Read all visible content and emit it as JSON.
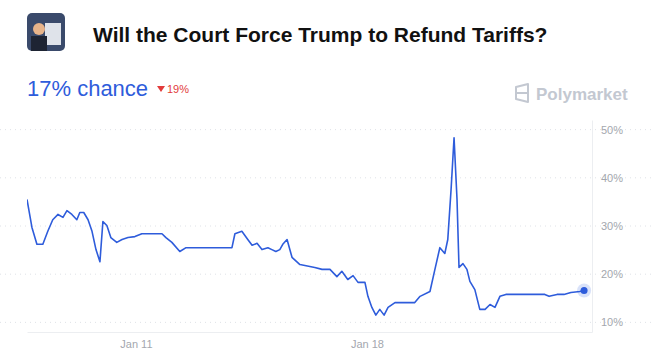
{
  "chart_data": {
    "type": "line",
    "title": "Will the Court Force Trump to Refund Tariffs?",
    "subtitle": "17% chance",
    "annotations": [
      "19%",
      "Polymarket"
    ],
    "color": "#2e5cdb",
    "grid": true,
    "x": [
      7.7,
      7.85,
      8.0,
      8.18,
      8.33,
      8.48,
      8.64,
      8.79,
      8.91,
      9.06,
      9.21,
      9.3,
      9.42,
      9.55,
      9.67,
      9.79,
      9.91,
      10.0,
      10.12,
      10.24,
      10.42,
      10.58,
      10.76,
      10.97,
      11.18,
      11.42,
      11.79,
      11.91,
      12.09,
      12.33,
      12.52,
      12.94,
      13.39,
      13.91,
      14.0,
      14.21,
      14.39,
      14.52,
      14.67,
      14.82,
      15.0,
      15.12,
      15.24,
      15.36,
      15.45,
      15.58,
      15.73,
      15.97,
      16.42,
      16.64,
      16.88,
      17.09,
      17.24,
      17.42,
      17.58,
      17.73,
      17.94,
      18.03,
      18.15,
      18.27,
      18.39,
      18.52,
      18.64,
      18.85,
      19.15,
      19.45,
      19.61,
      19.91,
      20.06,
      20.21,
      20.36,
      20.45,
      20.55,
      20.64,
      20.73,
      20.79,
      20.91,
      21.03,
      21.12,
      21.27,
      21.42,
      21.58,
      21.73,
      21.88,
      22.03,
      22.21,
      22.48,
      22.94,
      23.39,
      23.52,
      23.76,
      23.97,
      24.18,
      24.45,
      24.58
    ],
    "values": [
      35.5,
      29.7,
      26.2,
      26.2,
      28.9,
      31.3,
      32.4,
      31.8,
      33.2,
      32.4,
      31.3,
      32.8,
      32.8,
      31.3,
      28.9,
      25.1,
      22.6,
      30.9,
      30.1,
      27.6,
      26.6,
      27.2,
      27.6,
      27.8,
      28.4,
      28.4,
      28.4,
      27.6,
      26.6,
      24.7,
      25.5,
      25.5,
      25.5,
      25.5,
      28.4,
      28.9,
      27.2,
      26.0,
      26.4,
      25.1,
      25.5,
      25.1,
      24.7,
      25.1,
      26.2,
      27.2,
      23.5,
      22.0,
      21.4,
      21.0,
      21.0,
      19.5,
      20.6,
      18.9,
      19.7,
      18.3,
      18.3,
      15.4,
      13.1,
      11.5,
      12.7,
      11.5,
      13.1,
      14.1,
      14.1,
      14.1,
      15.4,
      16.4,
      21.0,
      25.5,
      24.3,
      27.2,
      37.6,
      48.3,
      35.5,
      21.4,
      22.2,
      21.0,
      18.5,
      16.8,
      12.7,
      12.7,
      13.7,
      13.1,
      15.4,
      15.8,
      15.8,
      15.8,
      15.8,
      15.4,
      15.8,
      15.8,
      16.2,
      16.4,
      16.6
    ],
    "xlim": [
      7.7,
      24.82
    ],
    "xticks": [
      {
        "value": 11,
        "label": "Jan 11"
      },
      {
        "value": 18,
        "label": "Jan 18"
      }
    ],
    "ylim": [
      8,
      52
    ],
    "yticks": [
      {
        "value": 10,
        "label": "10%"
      },
      {
        "value": 20,
        "label": "20%"
      },
      {
        "value": 30,
        "label": "30%"
      },
      {
        "value": 40,
        "label": "40%"
      },
      {
        "value": 50,
        "label": "50%"
      }
    ]
  }
}
